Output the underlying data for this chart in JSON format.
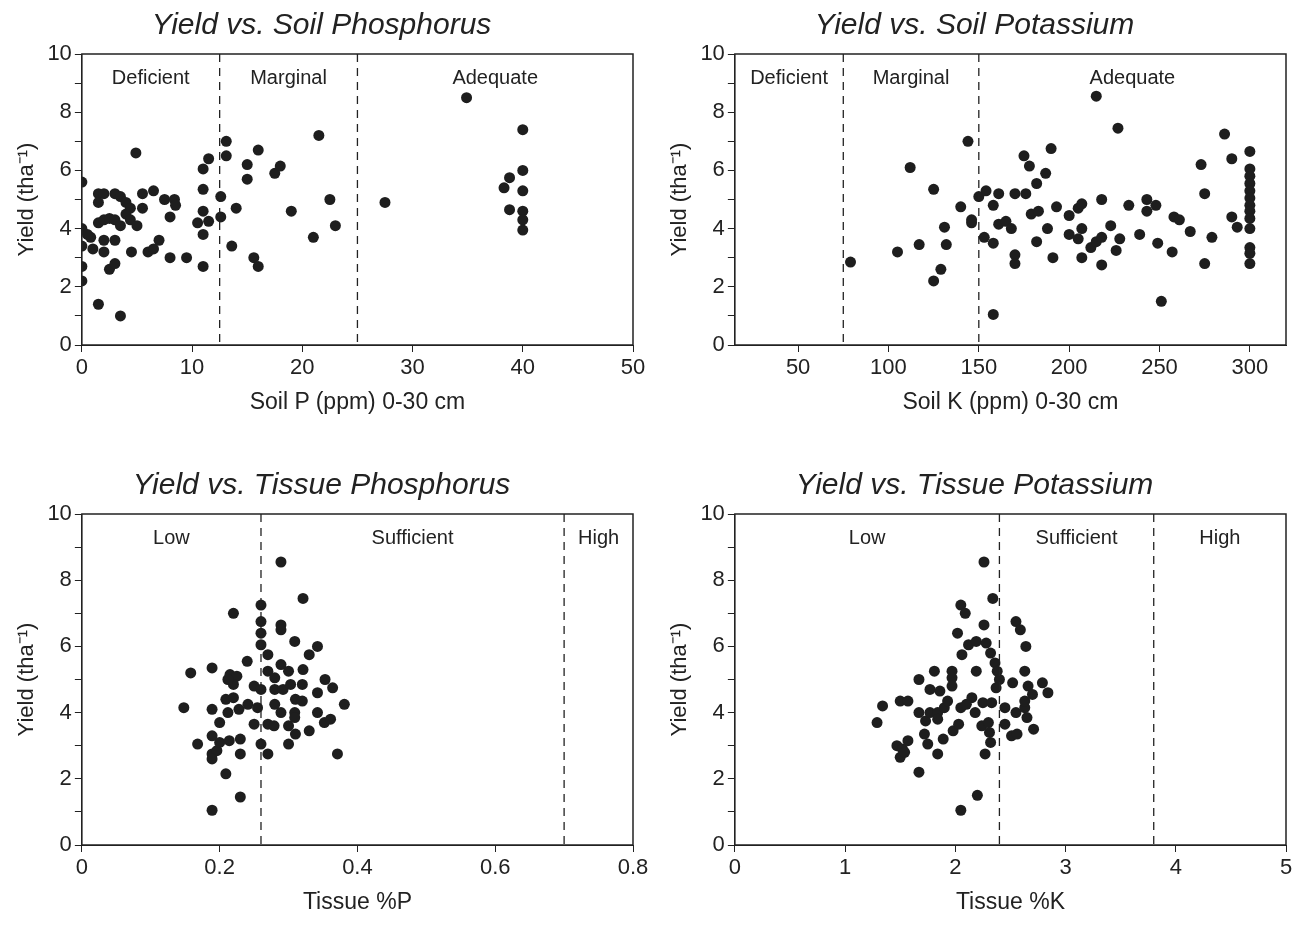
{
  "chart_data": [
    {
      "type": "scatter",
      "title": "Yield vs. Soil Phosphorus",
      "xlabel": "Soil P (ppm) 0-30 cm",
      "ylabel": "Yield (tha⁻¹)",
      "xlim": [
        0,
        50
      ],
      "xticks": [
        0,
        10,
        20,
        30,
        40,
        50
      ],
      "ylim": [
        0,
        10
      ],
      "yticks": [
        0,
        {
          "value": 1,
          "label": null
        },
        2,
        {
          "value": 3,
          "label": null
        },
        4,
        {
          "value": 5,
          "label": null
        },
        6,
        {
          "value": 7,
          "label": null
        },
        8,
        {
          "value": 9,
          "label": null
        },
        10
      ],
      "grid": false,
      "marker": "circle",
      "ref_lines": [
        {
          "axis": "x",
          "value": 12.5,
          "line_style": "dashed"
        },
        {
          "axis": "x",
          "value": 25,
          "line_style": "dashed"
        }
      ],
      "annotations": [
        "Deficient",
        "Marginal",
        "Adequate"
      ],
      "series": [
        {
          "color": "#1e1e1e",
          "x": [
            0,
            0,
            0,
            0,
            0,
            1.5,
            3.5,
            4.9,
            1.5,
            2,
            1.5,
            3,
            3.5,
            4,
            4.4,
            1.5,
            2,
            2.5,
            3,
            3.5,
            4,
            4.4,
            5,
            0.8,
            0.5,
            1,
            2,
            2,
            3,
            2.5,
            3,
            4.5,
            5.5,
            6.5,
            5.5,
            6,
            6.5,
            7,
            7.5,
            8.4,
            8.5,
            8,
            8,
            9.5,
            11,
            11.5,
            11,
            11,
            10.5,
            11.5,
            11,
            11,
            12.6,
            12.6,
            13.1,
            13.1,
            14,
            13.6,
            15,
            15,
            16,
            15.6,
            16,
            17.5,
            18,
            19,
            21.5,
            21,
            22.5,
            23,
            27.5,
            34.9,
            40,
            40,
            40,
            40,
            40,
            40,
            38.3,
            38.8,
            38.8
          ],
          "values": [
            5.6,
            4,
            3.4,
            2.7,
            2.2,
            1.4,
            1,
            6.6,
            5.2,
            5.2,
            4.9,
            5.2,
            5.1,
            4.9,
            4.7,
            4.2,
            4.3,
            4.35,
            4.3,
            4.1,
            4.5,
            4.3,
            4.1,
            3.7,
            3.8,
            3.3,
            3.6,
            3.2,
            3.6,
            2.6,
            2.8,
            3.2,
            5.2,
            5.3,
            4.7,
            3.2,
            3.3,
            3.6,
            5,
            5,
            4.8,
            4.4,
            3,
            3,
            6.05,
            6.4,
            5.35,
            4.6,
            4.2,
            4.25,
            3.8,
            2.7,
            5.1,
            4.4,
            7,
            6.5,
            4.7,
            3.4,
            6.2,
            5.7,
            6.7,
            3,
            2.7,
            5.9,
            6.15,
            4.6,
            7.2,
            3.7,
            5,
            4.1,
            4.9,
            8.5,
            7.4,
            6,
            5.3,
            4.6,
            4.3,
            3.95,
            5.4,
            5.75,
            4.65
          ]
        }
      ]
    },
    {
      "type": "scatter",
      "title": "Yield vs. Soil Potassium",
      "xlabel": "Soil K (ppm) 0-30 cm",
      "ylabel": "Yield (tha⁻¹)",
      "xlim": [
        15,
        320
      ],
      "xticks": [
        50,
        100,
        150,
        200,
        250,
        300
      ],
      "ylim": [
        0,
        10
      ],
      "yticks": [
        0,
        {
          "value": 1,
          "label": null
        },
        2,
        {
          "value": 3,
          "label": null
        },
        4,
        {
          "value": 5,
          "label": null
        },
        6,
        {
          "value": 7,
          "label": null
        },
        8,
        {
          "value": 9,
          "label": null
        },
        10
      ],
      "grid": false,
      "marker": "circle",
      "ref_lines": [
        {
          "axis": "x",
          "value": 75,
          "line_style": "dashed"
        },
        {
          "axis": "x",
          "value": 150,
          "line_style": "dashed"
        }
      ],
      "annotations": [
        "Deficient",
        "Marginal",
        "Adequate"
      ],
      "series": [
        {
          "color": "#1e1e1e",
          "x": [
            79,
            105,
            112,
            117,
            125,
            125,
            129,
            131,
            132,
            140,
            144,
            146,
            146,
            150,
            154,
            153,
            158,
            158,
            158,
            161,
            161,
            165,
            168,
            170,
            176,
            175,
            178,
            170,
            170,
            182,
            187,
            179,
            183,
            182,
            190,
            188,
            191,
            193,
            200,
            200,
            205,
            205,
            207,
            207,
            207,
            215,
            218,
            212,
            215,
            218,
            218,
            223,
            226,
            227,
            228,
            233,
            239,
            243,
            248,
            243,
            249,
            251,
            257,
            258,
            261,
            267,
            273,
            275,
            275,
            279,
            286,
            290,
            290,
            293,
            300,
            300,
            300,
            300,
            300,
            300,
            300,
            300,
            300,
            300,
            300,
            300,
            300
          ],
          "values": [
            2.85,
            3.2,
            6.1,
            3.45,
            5.35,
            2.2,
            2.6,
            4.05,
            3.45,
            4.75,
            7,
            4.3,
            4.2,
            5.1,
            5.3,
            3.7,
            3.5,
            4.8,
            1.05,
            5.2,
            4.15,
            4.25,
            4,
            5.2,
            5.2,
            6.5,
            6.15,
            3.1,
            2.8,
            5.55,
            5.9,
            4.5,
            4.6,
            3.55,
            6.75,
            4,
            3,
            4.75,
            4.45,
            3.8,
            3.65,
            4.7,
            4.85,
            4,
            3,
            8.55,
            5,
            3.35,
            3.55,
            3.7,
            2.75,
            4.1,
            3.25,
            7.45,
            3.65,
            4.8,
            3.8,
            5,
            4.8,
            4.6,
            3.5,
            1.5,
            3.2,
            4.4,
            4.3,
            3.9,
            6.2,
            5.2,
            2.8,
            3.7,
            7.25,
            6.4,
            4.4,
            4.05,
            6.65,
            6.05,
            5.8,
            5.55,
            5.3,
            5.05,
            4.8,
            4.6,
            4.35,
            4,
            3.35,
            3.15,
            2.8
          ]
        }
      ]
    },
    {
      "type": "scatter",
      "title": "Yield vs. Tissue Phosphorus",
      "xlabel": "Tissue %P",
      "ylabel": "Yield (tha⁻¹)",
      "xlim": [
        0,
        0.8
      ],
      "xticks": [
        0,
        0.2,
        0.4,
        0.6,
        0.8
      ],
      "ylim": [
        0,
        10
      ],
      "yticks": [
        0,
        {
          "value": 1,
          "label": null
        },
        2,
        {
          "value": 3,
          "label": null
        },
        4,
        {
          "value": 5,
          "label": null
        },
        6,
        {
          "value": 7,
          "label": null
        },
        8,
        {
          "value": 9,
          "label": null
        },
        10
      ],
      "grid": false,
      "marker": "circle",
      "ref_lines": [
        {
          "axis": "x",
          "value": 0.26,
          "line_style": "dashed"
        },
        {
          "axis": "x",
          "value": 0.7,
          "line_style": "dashed"
        }
      ],
      "annotations": [
        "Low",
        "Sufficient",
        "High"
      ],
      "series": [
        {
          "color": "#1e1e1e",
          "x": [
            0.148,
            0.158,
            0.168,
            0.189,
            0.189,
            0.189,
            0.189,
            0.189,
            0.196,
            0.189,
            0.2,
            0.209,
            0.215,
            0.225,
            0.22,
            0.212,
            0.22,
            0.209,
            0.22,
            0.212,
            0.228,
            0.241,
            0.255,
            0.2,
            0.214,
            0.23,
            0.23,
            0.23,
            0.24,
            0.25,
            0.25,
            0.26,
            0.26,
            0.26,
            0.26,
            0.27,
            0.26,
            0.27,
            0.27,
            0.28,
            0.26,
            0.28,
            0.289,
            0.27,
            0.279,
            0.289,
            0.289,
            0.289,
            0.289,
            0.3,
            0.28,
            0.292,
            0.303,
            0.309,
            0.3,
            0.31,
            0.3,
            0.309,
            0.309,
            0.31,
            0.32,
            0.321,
            0.32,
            0.321,
            0.33,
            0.342,
            0.342,
            0.342,
            0.33,
            0.353,
            0.364,
            0.352,
            0.361,
            0.381,
            0.371
          ],
          "values": [
            4.15,
            5.2,
            3.05,
            1.05,
            5.35,
            4.1,
            3.3,
            2.75,
            2.85,
            2.6,
            3.7,
            2.15,
            5.15,
            5.1,
            4.85,
            5,
            7,
            4.4,
            4.45,
            4,
            4.1,
            4.25,
            4.15,
            3.1,
            3.15,
            3.2,
            2.75,
            1.45,
            5.55,
            4.8,
            3.65,
            7.25,
            6.75,
            6.4,
            6.05,
            5.75,
            3.05,
            2.75,
            5.25,
            5.05,
            4.7,
            4.25,
            4,
            3.65,
            3.6,
            8.55,
            6.65,
            6.5,
            5.45,
            5.25,
            4.7,
            4.7,
            4.85,
            6.15,
            3.6,
            3.35,
            3.05,
            4,
            3.85,
            4.4,
            4.35,
            5.3,
            4.85,
            7.45,
            5.75,
            6,
            4.6,
            4,
            3.45,
            5,
            4.75,
            3.7,
            3.8,
            4.25,
            2.75
          ]
        }
      ]
    },
    {
      "type": "scatter",
      "title": "Yield vs. Tissue Potassium",
      "xlabel": "Tissue %K",
      "ylabel": "Yield (tha⁻¹)",
      "xlim": [
        0,
        5
      ],
      "xticks": [
        0,
        1,
        2,
        3,
        4,
        5
      ],
      "ylim": [
        0,
        10
      ],
      "yticks": [
        0,
        {
          "value": 1,
          "label": null
        },
        2,
        {
          "value": 3,
          "label": null
        },
        4,
        {
          "value": 5,
          "label": null
        },
        6,
        {
          "value": 7,
          "label": null
        },
        8,
        {
          "value": 9,
          "label": null
        },
        10
      ],
      "grid": false,
      "marker": "circle",
      "ref_lines": [
        {
          "axis": "x",
          "value": 2.4,
          "line_style": "dashed"
        },
        {
          "axis": "x",
          "value": 3.8,
          "line_style": "dashed"
        }
      ],
      "annotations": [
        "Low",
        "Sufficient",
        "High"
      ],
      "series": [
        {
          "color": "#1e1e1e",
          "x": [
            1.29,
            1.34,
            1.5,
            1.57,
            1.47,
            1.52,
            1.5,
            1.57,
            1.54,
            1.67,
            1.67,
            1.67,
            1.73,
            1.72,
            1.75,
            1.77,
            1.86,
            1.81,
            1.77,
            1.84,
            1.9,
            1.93,
            1.84,
            1.84,
            1.89,
            1.97,
            1.97,
            1.97,
            1.98,
            2.03,
            2.02,
            2.05,
            2.09,
            2.06,
            2.05,
            2.05,
            2.15,
            2.1,
            2.12,
            2.19,
            2.28,
            2.19,
            2.26,
            2.26,
            2.34,
            2.2,
            2.18,
            2.25,
            2.33,
            2.24,
            2.3,
            2.31,
            2.32,
            2.27,
            2.32,
            2.36,
            2.38,
            2.4,
            2.37,
            2.45,
            2.45,
            2.52,
            2.55,
            2.59,
            2.51,
            2.56,
            2.55,
            2.63,
            2.65,
            2.64,
            2.63,
            2.66,
            2.7,
            2.63,
            2.71,
            2.79,
            2.84
          ],
          "values": [
            3.7,
            4.2,
            4.35,
            4.35,
            3,
            2.9,
            2.65,
            3.15,
            2.8,
            2.2,
            5,
            4,
            3.75,
            3.35,
            3.05,
            4.7,
            4.65,
            5.25,
            4,
            4,
            4.15,
            4.35,
            3.8,
            2.75,
            3.2,
            5.25,
            5.05,
            4.8,
            3.45,
            3.65,
            6.4,
            7.25,
            7,
            5.75,
            1.05,
            4.15,
            4.45,
            4.25,
            6.05,
            6.15,
            6.1,
            5.25,
            6.65,
            8.55,
            7.45,
            1.5,
            4,
            4.3,
            4.3,
            3.6,
            3.7,
            3.4,
            3.1,
            2.75,
            5.8,
            5.5,
            5.25,
            5,
            4.75,
            4.15,
            3.65,
            4.9,
            6.75,
            6.5,
            3.3,
            3.35,
            4,
            4.15,
            3.85,
            6,
            5.25,
            4.8,
            4.55,
            4.35,
            3.5,
            4.9,
            4.6
          ]
        }
      ]
    }
  ]
}
